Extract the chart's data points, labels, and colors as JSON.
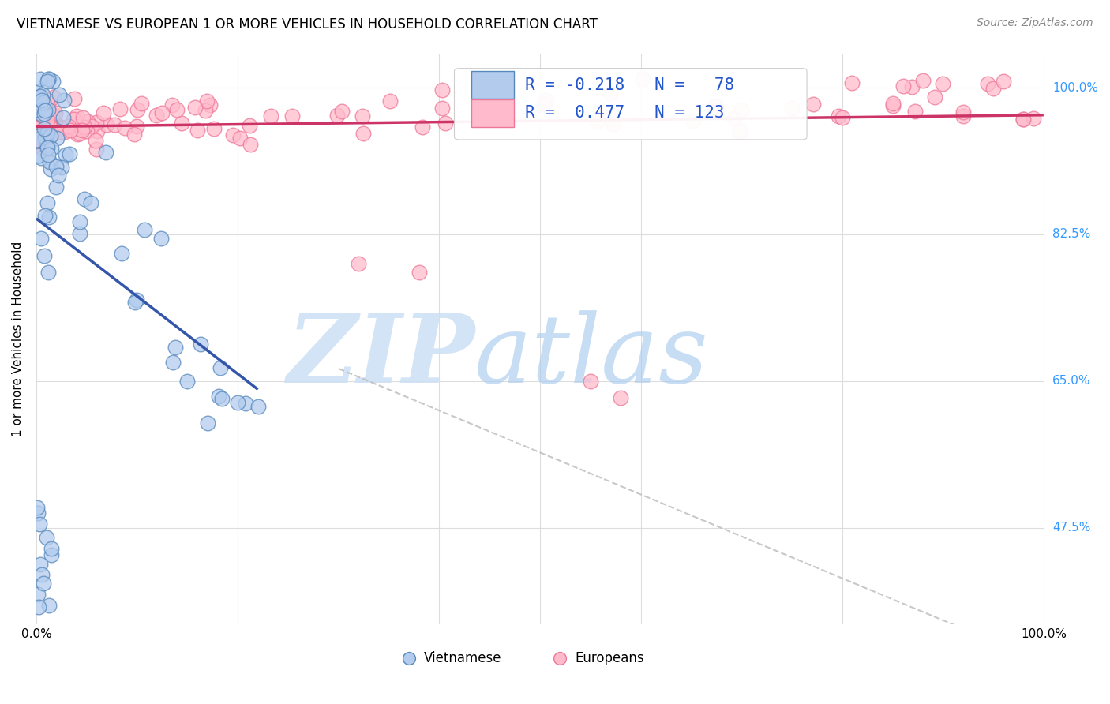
{
  "title": "VIETNAMESE VS EUROPEAN 1 OR MORE VEHICLES IN HOUSEHOLD CORRELATION CHART",
  "source": "Source: ZipAtlas.com",
  "ylabel": "1 or more Vehicles in Household",
  "xlim": [
    0.0,
    1.0
  ],
  "ylim": [
    0.36,
    1.04
  ],
  "ytick_vals": [
    0.475,
    0.65,
    0.825,
    1.0
  ],
  "ytick_labels": [
    "47.5%",
    "65.0%",
    "82.5%",
    "100.0%"
  ],
  "xtick_vals": [
    0.0,
    0.2,
    0.4,
    0.5,
    0.6,
    0.8,
    1.0
  ],
  "xtick_labels": [
    "0.0%",
    "",
    "",
    "",
    "",
    "",
    "100.0%"
  ],
  "blue_face": "#b3ccee",
  "blue_edge": "#5588bb",
  "pink_face": "#ffbbcc",
  "pink_edge": "#ee7799",
  "blue_line": "#3355aa",
  "pink_line": "#cc3366",
  "dash_color": "#bbbbbb",
  "ytick_color": "#3399ff",
  "grid_color": "#dddddd",
  "title_fontsize": 12,
  "source_fontsize": 10,
  "axis_fontsize": 11,
  "legend_fontsize": 15,
  "marker_size": 180,
  "watermark_zip_color": "#cce0f5",
  "watermark_atlas_color": "#aaccee"
}
